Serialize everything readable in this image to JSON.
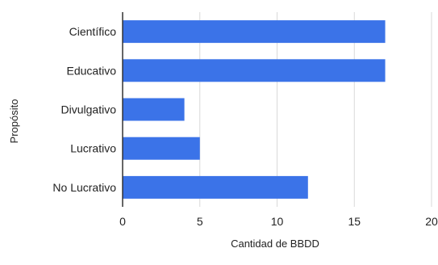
{
  "chart_data": {
    "type": "bar",
    "orientation": "horizontal",
    "title": "",
    "xlabel": "Cantidad de BBDD",
    "ylabel": "Propósito",
    "categories": [
      "Científico",
      "Educativo",
      "Divulgativo",
      "Lucrativo",
      "No Lucrativo"
    ],
    "values": [
      17,
      17,
      4,
      5,
      12
    ],
    "xlim": [
      0,
      20
    ],
    "xticks": [
      "0",
      "5",
      "10",
      "15",
      "20"
    ],
    "grid": true,
    "legend": "none",
    "colors": {
      "bar": "#3b73e8",
      "grid": "#d9d9d9",
      "axis": "#333333"
    }
  }
}
